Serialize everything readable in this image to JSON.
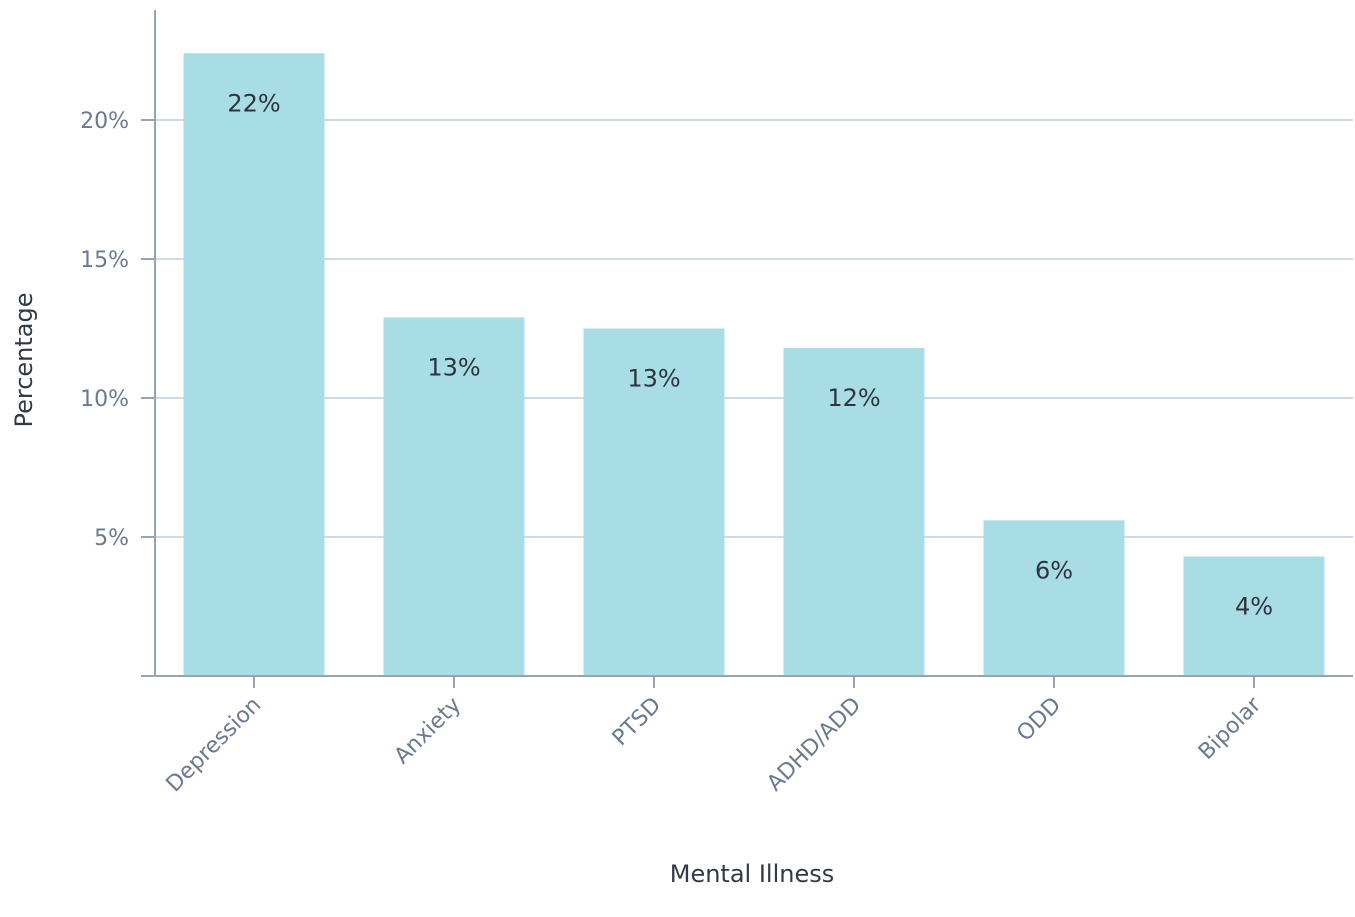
{
  "chart_data": {
    "type": "bar",
    "categories": [
      "Depression",
      "Anxiety",
      "PTSD",
      "ADHD/ADD",
      "ODD",
      "Bipolar"
    ],
    "values": [
      22.4,
      12.9,
      12.5,
      11.8,
      5.6,
      4.3
    ],
    "data_labels": [
      "22%",
      "13%",
      "13%",
      "12%",
      "6%",
      "4%"
    ],
    "y_tick_values": [
      5,
      10,
      15,
      20
    ],
    "y_tick_labels": [
      "5%",
      "10%",
      "15%",
      "20%"
    ],
    "ylim": [
      0,
      24
    ],
    "xlabel": "Mental Illness",
    "ylabel": "Percentage",
    "grid": true,
    "colors": {
      "bar": "#a8dde6",
      "grid": "#cfdae6",
      "axis": "#9aa3b0"
    }
  }
}
